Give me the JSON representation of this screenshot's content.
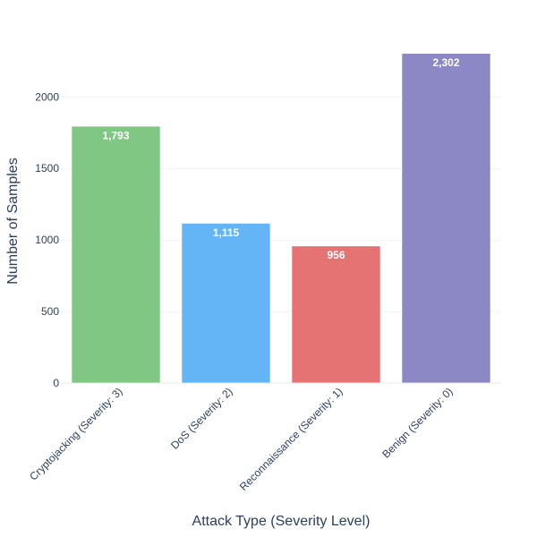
{
  "chart_data": {
    "type": "bar",
    "title": "",
    "xlabel": "Attack Type (Severity Level)",
    "ylabel": "Number of Samples",
    "categories": [
      "Cryptojacking (Severity: 3)",
      "DoS (Severity: 2)",
      "Reconnaissance (Severity: 1)",
      "Benign (Severity: 0)"
    ],
    "values": [
      1793,
      1115,
      956,
      2302
    ],
    "value_labels": [
      "1,793",
      "1,115",
      "956",
      "2,302"
    ],
    "colors": [
      "#81c784",
      "#64b5f6",
      "#e57373",
      "#8c88c6"
    ],
    "ylim": [
      0,
      2302
    ],
    "yticks": [
      0,
      500,
      1000,
      1500,
      2000
    ],
    "ytick_labels": [
      "0",
      "500",
      "1000",
      "1500",
      "2000"
    ],
    "grid": true,
    "legend": "none"
  }
}
